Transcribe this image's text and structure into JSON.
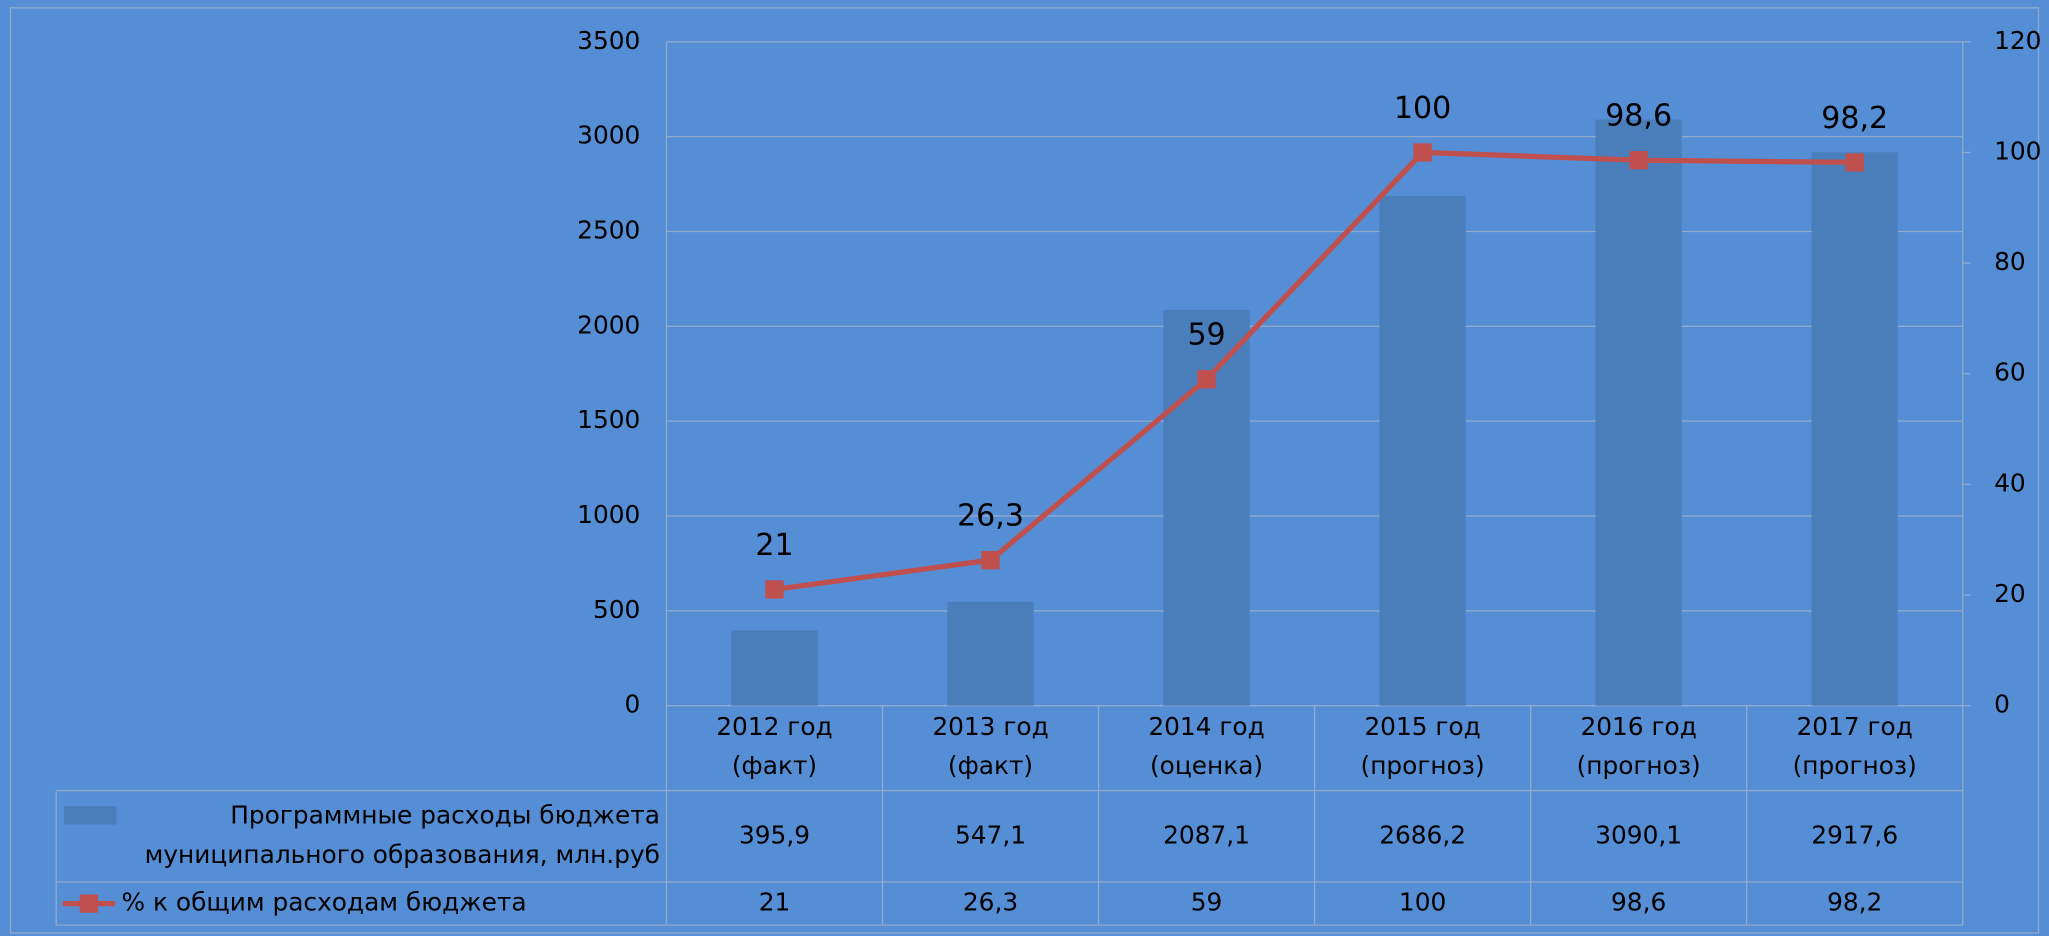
{
  "chart_data": {
    "type": "bar_line",
    "categories": [
      "2012 год\n(факт)",
      "2013 год\n(факт)",
      "2014 год\n(оценка)",
      "2015 год\n(прогноз)",
      "2016 год\n(прогноз)",
      "2017 год\n(прогноз)"
    ],
    "series": [
      {
        "name": "Программные расходы бюджета муниципального образования, млн.руб",
        "type": "bar",
        "color": "#4a7ebb",
        "values": [
          395.9,
          547.1,
          2087.1,
          2686.2,
          3090.1,
          2917.6
        ],
        "value_labels": [
          "395,9",
          "547,1",
          "2087,1",
          "2686,2",
          "3090,1",
          "2917,6"
        ]
      },
      {
        "name": "% к общим расходам бюджета",
        "type": "line",
        "axis": "y2",
        "color": "#c0504d",
        "values": [
          21,
          26.3,
          59,
          100,
          98.6,
          98.2
        ],
        "value_labels": [
          "21",
          "26,3",
          "59",
          "100",
          "98,6",
          "98,2"
        ]
      }
    ],
    "ylim": [
      0,
      3500
    ],
    "yticks": [
      0,
      500,
      1000,
      1500,
      2000,
      2500,
      3000,
      3500
    ],
    "y2lim": [
      0,
      120
    ],
    "y2ticks": [
      0,
      20,
      40,
      60,
      80,
      100,
      120
    ],
    "grid": true,
    "data_table": true
  }
}
